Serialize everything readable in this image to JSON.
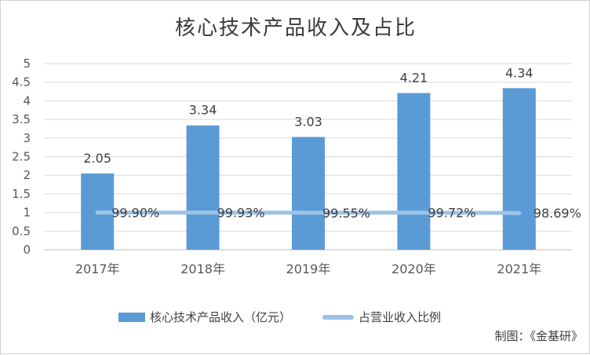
{
  "chart_data": {
    "type": "bar",
    "title": "核心技术产品收入及占比",
    "categories": [
      "2017年",
      "2018年",
      "2019年",
      "2020年",
      "2021年"
    ],
    "series": [
      {
        "name": "核心技术产品收入（亿元）",
        "type": "bar",
        "values": [
          2.05,
          3.34,
          3.03,
          4.21,
          4.34
        ],
        "labels": [
          "2.05",
          "3.34",
          "3.03",
          "4.21",
          "4.34"
        ],
        "color": "#5b9bd5"
      },
      {
        "name": "占营业收入比例",
        "type": "line",
        "values": [
          99.9,
          99.93,
          99.55,
          99.72,
          98.69
        ],
        "labels": [
          "99.90%",
          "99.93%",
          "99.55%",
          "99.72%",
          "98.69%"
        ],
        "color": "#9dc3e6"
      }
    ],
    "y_ticks": [
      "0",
      "0.5",
      "1",
      "1.5",
      "2",
      "2.5",
      "3",
      "3.5",
      "4",
      "4.5",
      "5"
    ],
    "ylim": [
      0,
      5
    ],
    "grid": true,
    "legend": "bottom"
  },
  "credit": "制图：《金基研》"
}
